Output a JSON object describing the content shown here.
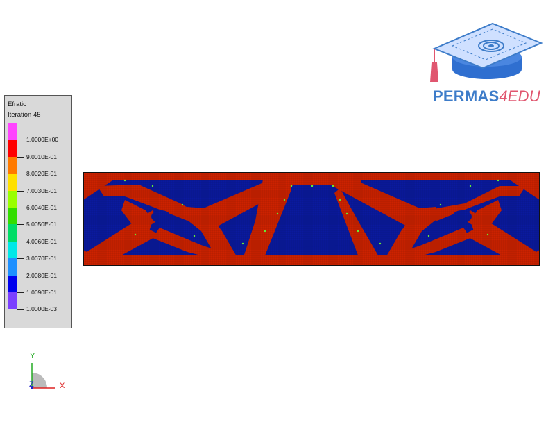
{
  "legend": {
    "title": "Efratio",
    "subtitle": "Iteration 45",
    "labels": [
      "1.0000E+00",
      "9.0010E-01",
      "8.0020E-01",
      "7.0030E-01",
      "6.0040E-01",
      "5.0050E-01",
      "4.0060E-01",
      "3.0070E-01",
      "2.0080E-01",
      "1.0090E-01",
      "1.0000E-03"
    ],
    "colors": [
      "#ff44ff",
      "#ff0000",
      "#ff7a00",
      "#ffe000",
      "#99ff00",
      "#33dd00",
      "#00dd66",
      "#00e8e8",
      "#1e90ff",
      "#0000ee",
      "#7b3fff"
    ]
  },
  "logo": {
    "brand": "PERMAS",
    "suffix": "4EDU"
  },
  "axes": {
    "x": "X",
    "y": "Y",
    "z": "Z"
  },
  "colors": {
    "solid": "#cc2200",
    "void": "#0a1a9e"
  }
}
